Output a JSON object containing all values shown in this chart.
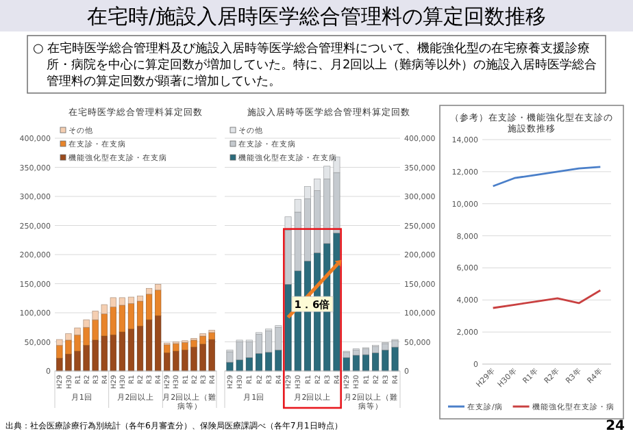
{
  "chart_data": [
    {
      "type": "other",
      "title": "在宅時/施設入居時医学総合管理料の算定回数推移",
      "subtitle": "○ 在宅時医学総合管理料及び施設入居時等医学総合管理料について、機能強化型の在宅療養支援診療所・病院を中心に算定回数が増加していた。特に、月2回以上（難病等以外）の施設入居時医学総合管理料の算定回数が顕著に増加していた。",
      "annotations": [
        "出典：社会医療診療行為別統計（各年6月審査分）、保険局医療課調べ（各年7月1日時点）",
        "24"
      ]
    },
    {
      "type": "bar",
      "stacked": true,
      "title": "在宅時医学総合管理料算定回数",
      "categories": [
        "H29",
        "H30",
        "R1",
        "R2",
        "R3",
        "R4",
        "H29",
        "H30",
        "R1",
        "R2",
        "R3",
        "R4",
        "H29",
        "H30",
        "R1",
        "R2",
        "R3",
        "R4"
      ],
      "series": [
        {
          "name": "機能強化型在支診・在支病",
          "color": "#9a4a1c",
          "values": [
            22000,
            29000,
            34000,
            44000,
            53000,
            60000,
            62000,
            67000,
            72000,
            77000,
            88000,
            95000,
            31000,
            34000,
            36000,
            41000,
            46000,
            54000
          ]
        },
        {
          "name": "在支診・在支病",
          "color": "#e8842a",
          "values": [
            22000,
            24000,
            28000,
            31000,
            35000,
            38000,
            48000,
            46000,
            44000,
            43000,
            44000,
            44000,
            14000,
            13000,
            13000,
            12000,
            14000,
            12000
          ]
        },
        {
          "name": "その他",
          "color": "#f5cfb2",
          "values": [
            10000,
            11000,
            12000,
            13000,
            15000,
            16000,
            16000,
            13000,
            11000,
            9000,
            10000,
            10000,
            3000,
            3000,
            3000,
            3000,
            4000,
            4000
          ]
        }
      ],
      "ylim": [
        0,
        400000
      ],
      "yticks": [
        {
          "value": 0,
          "label": "0"
        },
        {
          "value": 50000,
          "label": "50,000"
        },
        {
          "value": 100000,
          "label": "100,000"
        },
        {
          "value": 150000,
          "label": "150,000"
        },
        {
          "value": 200000,
          "label": "200,000"
        },
        {
          "value": 250000,
          "label": "250,000"
        },
        {
          "value": 300000,
          "label": "300,000"
        },
        {
          "value": 350000,
          "label": "350,000"
        },
        {
          "value": 400000,
          "label": "400,000"
        }
      ],
      "grid": "y",
      "legend": "top left",
      "annotations": [
        "月1回",
        "月2回以上",
        "月2回以上（難病等）"
      ]
    },
    {
      "type": "bar",
      "stacked": true,
      "title": "施設入居時等医学総合管理料算定回数",
      "categories": [
        "H29",
        "H30",
        "R1",
        "R2",
        "R3",
        "R4",
        "H29",
        "H30",
        "R1",
        "R2",
        "R3",
        "R4",
        "H29",
        "H30",
        "R1",
        "R2",
        "R3",
        "R4"
      ],
      "series": [
        {
          "name": "機能強化型在支診・在支病",
          "color": "#2b6b7c",
          "values": [
            15000,
            19000,
            23000,
            30000,
            32000,
            36000,
            149000,
            172000,
            189000,
            203000,
            219000,
            237000,
            23000,
            27000,
            28000,
            31000,
            36000,
            41000
          ]
        },
        {
          "name": "在支診・在支病",
          "color": "#c5cacf",
          "values": [
            18000,
            31000,
            27000,
            33000,
            37000,
            39000,
            93000,
            101000,
            107000,
            107000,
            111000,
            104000,
            9000,
            9000,
            10000,
            11000,
            11000,
            11000
          ]
        },
        {
          "name": "その他",
          "color": "#e2e5e8",
          "values": [
            3000,
            3000,
            3000,
            3000,
            3000,
            3000,
            23000,
            22000,
            21000,
            20000,
            22000,
            27000,
            2000,
            2000,
            2000,
            2000,
            2000,
            2000
          ]
        }
      ],
      "ylim": [
        0,
        400000
      ],
      "yticks": [
        {
          "value": 0,
          "label": "0"
        },
        {
          "value": 50000,
          "label": "50,000"
        },
        {
          "value": 100000,
          "label": "100,000"
        },
        {
          "value": 150000,
          "label": "150,000"
        },
        {
          "value": 200000,
          "label": "200,000"
        },
        {
          "value": 250000,
          "label": "250,000"
        },
        {
          "value": 300000,
          "label": "300,000"
        },
        {
          "value": 350000,
          "label": "350,000"
        },
        {
          "value": 400000,
          "label": "400,000"
        }
      ],
      "grid": "y",
      "legend": "top left",
      "annotations": [
        "月1回",
        "月2回以上",
        "月2回以上（難病等）",
        "1．6倍"
      ]
    },
    {
      "type": "line",
      "title": "（参考）在支診・機能強化型在支診の施設数推移",
      "categories": [
        "H29年",
        "H30年",
        "R1年",
        "R2年",
        "R3年",
        "R4年"
      ],
      "series": [
        {
          "name": "在支診/病",
          "color": "#4a7fc9",
          "values": [
            11100,
            11600,
            11800,
            12000,
            12200,
            12300
          ]
        },
        {
          "name": "機能強化型在支診・病",
          "color": "#c94040",
          "values": [
            3500,
            3700,
            3900,
            4100,
            3800,
            4600
          ]
        }
      ],
      "ylim": [
        0,
        14000
      ],
      "yticks": [
        {
          "value": 0,
          "label": "0"
        },
        {
          "value": 2000,
          "label": "2,000"
        },
        {
          "value": 4000,
          "label": "4,000"
        },
        {
          "value": 6000,
          "label": "6,000"
        },
        {
          "value": 8000,
          "label": "8,000"
        },
        {
          "value": 10000,
          "label": "10,000"
        },
        {
          "value": 12000,
          "label": "12,000"
        },
        {
          "value": 14000,
          "label": "14,000"
        }
      ],
      "grid": "y",
      "legend": "bottom",
      "marker": "none",
      "line_style": "solid"
    }
  ]
}
